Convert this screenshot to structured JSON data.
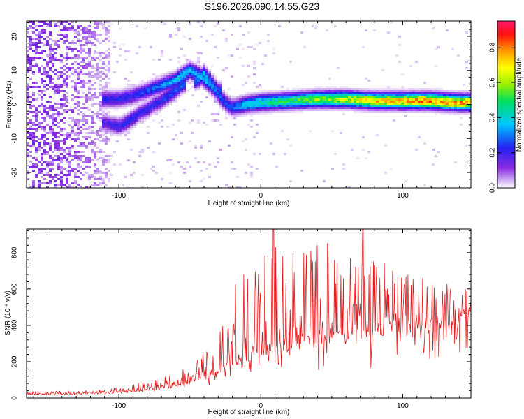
{
  "title": "S196.2026.090.14.55.G23",
  "colors": {
    "snr_line": "#e31a1c",
    "frame": "#000000",
    "background": "#ffffff"
  },
  "chart_data": [
    {
      "type": "heatmap",
      "name": "spectrogram",
      "xlabel": "Height of straight line (km)",
      "ylabel": "Frequency (Hz)",
      "xlim": [
        -165,
        148
      ],
      "ylim": [
        -24.5,
        24.5
      ],
      "xticks": [
        -100,
        0,
        100
      ],
      "yticks": [
        -20,
        -10,
        0,
        10,
        20
      ],
      "colorbar": {
        "label": "Normalized spectral amplitude",
        "range": [
          0,
          0.95
        ],
        "ticks": [
          0.0,
          0.2,
          0.4,
          0.6,
          0.8
        ],
        "colormap": "rainbow (white-violet-blue-cyan-green-yellow-red-magenta)"
      },
      "ridges": [
        {
          "name": "main track",
          "x": [
            -110,
            -100,
            -90,
            -80,
            -70,
            -60,
            -55,
            -50,
            -45,
            -40,
            -35,
            -30,
            -25,
            -20,
            -10,
            0,
            20,
            40,
            60,
            80,
            100,
            120,
            140,
            148
          ],
          "f": [
            1.5,
            1.5,
            2.5,
            4,
            5.5,
            7,
            8.5,
            10,
            9,
            7.5,
            5.5,
            3,
            0.5,
            -1,
            0,
            0.5,
            1,
            1.5,
            1.5,
            1,
            1,
            1,
            0.5,
            0.5
          ],
          "amp": [
            0.25,
            0.25,
            0.25,
            0.3,
            0.35,
            0.4,
            0.45,
            0.4,
            0.4,
            0.4,
            0.35,
            0.3,
            0.3,
            0.3,
            0.45,
            0.5,
            0.55,
            0.65,
            0.7,
            0.8,
            0.85,
            0.9,
            0.88,
            0.85
          ]
        },
        {
          "name": "lower branch",
          "x": [
            -110,
            -100,
            -95,
            -90,
            -85,
            -80,
            -75,
            -70,
            -65,
            -60,
            -55
          ],
          "f": [
            -5.5,
            -6.5,
            -5.5,
            -4,
            -2.5,
            -1.5,
            0,
            1,
            2.5,
            4,
            6
          ],
          "amp": [
            0.2,
            0.25,
            0.25,
            0.25,
            0.25,
            0.25,
            0.25,
            0.25,
            0.3,
            0.3,
            0.35
          ]
        },
        {
          "name": "upper branch",
          "x": [
            -45,
            -40,
            -35,
            -30
          ],
          "f": [
            7,
            9,
            6.5,
            4
          ],
          "amp": [
            0.35,
            0.4,
            0.35,
            0.3
          ]
        }
      ],
      "noise_region": {
        "x": [
          -165,
          -105
        ],
        "f": [
          -24.5,
          24.5
        ],
        "amp_max": 0.15
      }
    },
    {
      "type": "line",
      "name": "snr",
      "xlabel": "Height of straight line (km)",
      "ylabel": "SNR (10 * v/v)",
      "xlim": [
        -165,
        148
      ],
      "ylim": [
        0,
        930
      ],
      "xticks": [
        -100,
        0,
        100
      ],
      "yticks": [
        0,
        200,
        400,
        600,
        800
      ],
      "envelope": {
        "x": [
          -165,
          -140,
          -110,
          -90,
          -70,
          -55,
          -40,
          -30,
          -25,
          -20,
          -10,
          0,
          10,
          20,
          40,
          60,
          80,
          100,
          120,
          148
        ],
        "base": [
          20,
          20,
          25,
          35,
          50,
          70,
          110,
          150,
          170,
          200,
          220,
          250,
          280,
          300,
          330,
          360,
          380,
          400,
          420,
          450
        ],
        "peak": [
          35,
          40,
          50,
          80,
          110,
          160,
          250,
          350,
          480,
          650,
          750,
          800,
          850,
          850,
          850,
          850,
          800,
          700,
          650,
          600
        ]
      },
      "highlights": [
        {
          "x": 9,
          "y": 930
        },
        {
          "x": 72,
          "y": 930
        },
        {
          "x": 47,
          "y": 850
        }
      ]
    }
  ]
}
